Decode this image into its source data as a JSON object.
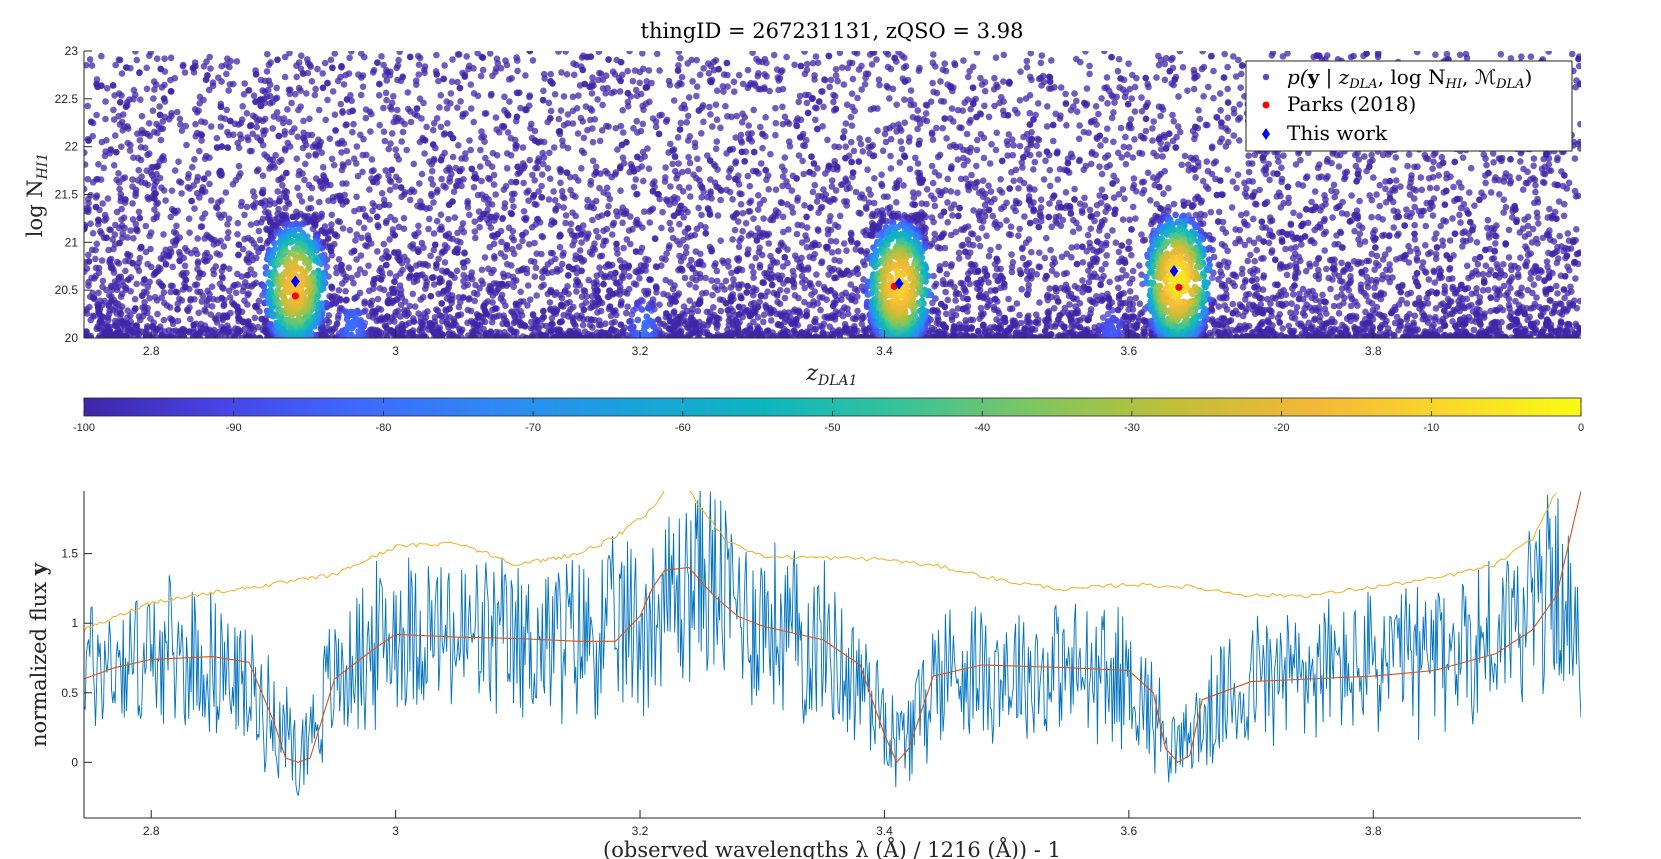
{
  "chart_data": [
    {
      "type": "scatter",
      "title": "thingID = 267231131, zQSO = 3.98",
      "xlabel": "z_DLA1",
      "xlabel_main": "z",
      "xlabel_sub": "DLA1",
      "ylabel": "log N_HI1",
      "ylabel_main": "log N",
      "ylabel_sub": "HI1",
      "xlim": [
        2.745,
        3.97
      ],
      "ylim": [
        20,
        23
      ],
      "x_ticks": [
        "2.8",
        "3",
        "3.2",
        "3.4",
        "3.6",
        "3.8"
      ],
      "x_tick_values": [
        2.8,
        3.0,
        3.2,
        3.4,
        3.6,
        3.8
      ],
      "y_ticks": [
        "20",
        "20.5",
        "21",
        "21.5",
        "22",
        "22.5",
        "23"
      ],
      "y_tick_values": [
        20,
        20.5,
        21,
        21.5,
        22,
        22.5,
        23
      ],
      "grid": false,
      "legend_position": "top-right",
      "legend": [
        {
          "key": "samples",
          "label": "p(y | z_DLA, log N_HI, M_DLA)",
          "marker": "dot",
          "color": "#5e48c0"
        },
        {
          "key": "parks",
          "label": "Parks (2018)",
          "marker": "dot",
          "color": "#ff0000"
        },
        {
          "key": "this_work",
          "label": "This work",
          "marker": "diamond",
          "color": "#0000ff"
        }
      ],
      "legend_label_samples_p": "p(",
      "legend_label_samples_y": "y",
      "legend_label_samples_mid": " | z",
      "legend_label_samples_sub1": "DLA",
      "legend_label_samples_log": ", log N",
      "legend_label_samples_sub2": "HI",
      "legend_label_samples_m": ", ℳ",
      "legend_label_samples_sub3": "DLA",
      "legend_label_samples_end": ")",
      "parks_2018": [
        {
          "z": 2.918,
          "log_nhi": 20.44
        },
        {
          "z": 3.408,
          "log_nhi": 20.54
        },
        {
          "z": 3.641,
          "log_nhi": 20.53
        }
      ],
      "this_work": [
        {
          "z": 2.918,
          "log_nhi": 20.59
        },
        {
          "z": 3.412,
          "log_nhi": 20.57
        },
        {
          "z": 3.637,
          "log_nhi": 20.7
        }
      ],
      "likelihood_peaks": [
        {
          "z": 2.918,
          "log_nhi": 20.55,
          "max_log_likelihood": -15
        },
        {
          "z": 3.412,
          "log_nhi": 20.55,
          "max_log_likelihood": -10
        },
        {
          "z": 3.64,
          "log_nhi": 20.6,
          "max_log_likelihood": -5
        },
        {
          "z": 2.965,
          "log_nhi": 20.1,
          "max_log_likelihood": -80
        },
        {
          "z": 3.203,
          "log_nhi": 20.1,
          "max_log_likelihood": -80
        },
        {
          "z": 3.586,
          "log_nhi": 20.05,
          "max_log_likelihood": -85
        }
      ],
      "colorbar": {
        "range": [
          -100,
          0
        ],
        "ticks": [
          "-100",
          "-90",
          "-80",
          "-70",
          "-60",
          "-50",
          "-40",
          "-30",
          "-20",
          "-10",
          "0"
        ],
        "tick_values": [
          -100,
          -90,
          -80,
          -70,
          -60,
          -50,
          -40,
          -30,
          -20,
          -10,
          0
        ],
        "colormap": "parula",
        "colors": [
          "#3e26a8",
          "#4744e4",
          "#3e69fe",
          "#2f88f4",
          "#1aa2db",
          "#0db6be",
          "#38c29a",
          "#80c660",
          "#c1bf37",
          "#f2b739",
          "#f9d82b",
          "#f9fb15"
        ]
      }
    },
    {
      "type": "line",
      "xlabel": "(observed wavelengths λ (Å) / 1216 (Å)) - 1",
      "ylabel": "normalized flux y",
      "ylabel_main": "normalized flux ",
      "ylabel_bold": "y",
      "xlim": [
        2.745,
        3.97
      ],
      "ylim": [
        -0.4,
        1.95
      ],
      "x_ticks": [
        "2.8",
        "3",
        "3.2",
        "3.4",
        "3.6",
        "3.8"
      ],
      "x_tick_values": [
        2.8,
        3.0,
        3.2,
        3.4,
        3.6,
        3.8
      ],
      "y_ticks": [
        "0",
        "0.5",
        "1",
        "1.5"
      ],
      "y_tick_values": [
        0,
        0.5,
        1,
        1.5
      ],
      "grid": false,
      "series": [
        {
          "key": "flux",
          "color": "#0072bd",
          "x": [
            2.745,
            2.8,
            2.85,
            2.9,
            2.92,
            2.95,
            3.0,
            3.05,
            3.1,
            3.15,
            3.2,
            3.25,
            3.3,
            3.35,
            3.4,
            3.41,
            3.45,
            3.5,
            3.55,
            3.6,
            3.64,
            3.7,
            3.75,
            3.8,
            3.85,
            3.9,
            3.95,
            3.97
          ],
          "y": [
            0.7,
            0.75,
            0.72,
            0.35,
            0.05,
            0.6,
            0.95,
            0.9,
            0.85,
            0.9,
            1.0,
            1.35,
            1.0,
            0.85,
            0.4,
            0.1,
            0.7,
            0.65,
            0.65,
            0.6,
            0.1,
            0.6,
            0.65,
            0.7,
            0.75,
            0.9,
            1.3,
            0.7
          ]
        },
        {
          "key": "model",
          "color": "#d95319",
          "x": [
            2.745,
            2.77,
            2.8,
            2.85,
            2.88,
            2.9,
            2.91,
            2.92,
            2.93,
            2.95,
            2.98,
            3.0,
            3.05,
            3.1,
            3.15,
            3.18,
            3.2,
            3.21,
            3.22,
            3.24,
            3.26,
            3.28,
            3.3,
            3.35,
            3.38,
            3.4,
            3.41,
            3.42,
            3.44,
            3.48,
            3.55,
            3.6,
            3.62,
            3.63,
            3.64,
            3.65,
            3.66,
            3.7,
            3.8,
            3.85,
            3.9,
            3.93,
            3.95,
            3.97
          ],
          "y": [
            0.6,
            0.68,
            0.74,
            0.76,
            0.72,
            0.3,
            0.03,
            0.0,
            0.03,
            0.6,
            0.8,
            0.92,
            0.9,
            0.89,
            0.87,
            0.87,
            1.05,
            1.25,
            1.38,
            1.4,
            1.2,
            1.05,
            0.98,
            0.88,
            0.7,
            0.2,
            0.0,
            0.1,
            0.62,
            0.7,
            0.68,
            0.66,
            0.5,
            0.1,
            0.0,
            0.05,
            0.45,
            0.58,
            0.62,
            0.66,
            0.78,
            0.95,
            1.2,
            1.95
          ]
        },
        {
          "key": "noise",
          "color": "#edb120",
          "segments": [
            {
              "x": [
                2.745,
                2.8,
                2.85,
                2.9,
                2.95,
                3.0,
                3.05,
                3.1,
                3.15,
                3.18,
                3.2,
                3.21,
                3.22
              ],
              "y": [
                0.95,
                1.15,
                1.22,
                1.28,
                1.35,
                1.55,
                1.58,
                1.42,
                1.5,
                1.62,
                1.75,
                1.82,
                1.95
              ]
            },
            {
              "x": [
                3.24,
                3.27,
                3.3,
                3.35,
                3.4,
                3.45,
                3.5,
                3.55,
                3.6,
                3.65,
                3.7,
                3.75,
                3.8,
                3.85,
                3.9,
                3.93,
                3.95
              ],
              "y": [
                1.95,
                1.6,
                1.48,
                1.47,
                1.46,
                1.4,
                1.3,
                1.24,
                1.28,
                1.26,
                1.2,
                1.2,
                1.26,
                1.32,
                1.42,
                1.6,
                1.95
              ]
            }
          ]
        }
      ]
    }
  ]
}
